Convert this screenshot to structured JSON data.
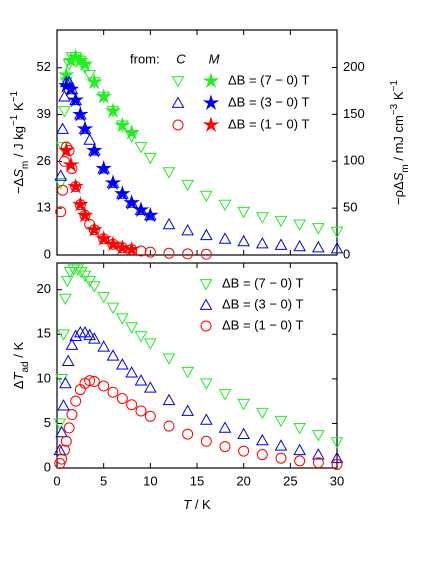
{
  "chart_data": [
    {
      "type": "scatter",
      "xlim": [
        0,
        30
      ],
      "xticks": [
        0,
        5,
        10,
        15,
        20,
        25,
        30
      ],
      "xtick_labels": false,
      "ylim": [
        0,
        62.5
      ],
      "yticks": [
        0,
        13,
        26,
        39,
        52
      ],
      "y2lim": [
        0,
        240
      ],
      "y2ticks": [
        0,
        50,
        100,
        150,
        200
      ],
      "ylabel": [
        {
          "text": "−Δ"
        },
        {
          "text": "S",
          "italic": true
        },
        {
          "text": "m",
          "sub": true
        },
        {
          "text": " / J kg"
        },
        {
          "text": "−1",
          "sup": true
        },
        {
          "text": " K"
        },
        {
          "text": "−1",
          "sup": true
        }
      ],
      "y2label": [
        {
          "text": "−ρΔ"
        },
        {
          "text": "S",
          "italic": true
        },
        {
          "text": "m",
          "sub": true
        },
        {
          "text": " / mJ cm"
        },
        {
          "text": "−3",
          "sup": true
        },
        {
          "text": " K"
        },
        {
          "text": "−1",
          "sup": true
        }
      ],
      "legend_title": "from:",
      "methods": [
        "C",
        "M"
      ],
      "series": [
        {
          "name": "ΔB = (7 − 0) T",
          "color": "#22ee22",
          "C": {
            "marker": "triangle-down",
            "x": [
              0.4,
              0.6,
              0.8,
              1,
              1.3,
              1.6,
              2,
              2.5,
              3,
              3.5,
              4,
              5,
              6,
              7,
              8,
              9,
              10,
              12,
              14,
              16,
              18,
              20,
              22,
              24,
              26,
              28,
              30
            ],
            "values": [
              20,
              30,
              40,
              48,
              53,
              55,
              55,
              54,
              52,
              50,
              48,
              44,
              40,
              36,
              33,
              30,
              27,
              23,
              19.5,
              16.5,
              14,
              12,
              10.5,
              9.5,
              8.5,
              7.5,
              6.5
            ]
          },
          "M": {
            "marker": "star",
            "x": [
              1,
              1.5,
              2,
              2.5,
              3,
              4,
              5,
              6,
              7,
              8
            ],
            "values": [
              50,
              54,
              55,
              54,
              53,
              48,
              44,
              40,
              36,
              34
            ]
          }
        },
        {
          "name": "ΔB = (3 − 0) T",
          "color": "#0000ee",
          "C": {
            "marker": "triangle-up",
            "x": [
              0.4,
              0.6,
              0.8,
              1,
              1.3,
              1.6,
              2,
              2.5,
              3,
              3.5,
              4,
              5,
              6,
              7,
              8,
              9,
              10,
              12,
              14,
              16,
              18,
              20,
              22,
              24,
              26,
              28,
              30
            ],
            "values": [
              22,
              35,
              44,
              48,
              48,
              46,
              43,
              39,
              35,
              32,
              29,
              24,
              20,
              17,
              14.5,
              12.5,
              11,
              8.5,
              6.8,
              5.5,
              4.5,
              3.8,
              3.2,
              2.8,
              2.4,
              2.1,
              1.8
            ]
          },
          "M": {
            "marker": "star",
            "x": [
              1,
              1.5,
              2,
              2.5,
              3,
              4,
              5,
              6,
              7,
              8,
              9,
              10
            ],
            "values": [
              47,
              46,
              43,
              39,
              35,
              29,
              24,
              20,
              17,
              14.5,
              12.5,
              11
            ]
          }
        },
        {
          "name": "ΔB = (1 − 0) T",
          "color": "#ff0000",
          "C": {
            "marker": "circle",
            "x": [
              0.4,
              0.6,
              0.8,
              1,
              1.3,
              1.6,
              2,
              2.5,
              3,
              3.5,
              4,
              5,
              6,
              7,
              8,
              9,
              10,
              12,
              14,
              16
            ],
            "values": [
              12,
              18,
              26,
              30,
              29,
              24,
              19,
              14,
              11,
              8.5,
              7,
              4.5,
              3,
              2,
              1.5,
              1.1,
              0.8,
              0.5,
              0.3,
              0.2
            ]
          },
          "M": {
            "marker": "star",
            "x": [
              1,
              1.5,
              2,
              2.5,
              3,
              4,
              5,
              6,
              7,
              8
            ],
            "values": [
              29,
              25,
              19,
              14,
              11,
              7,
              4.5,
              3,
              2,
              1.5
            ]
          }
        }
      ]
    },
    {
      "type": "scatter",
      "xlim": [
        0,
        30
      ],
      "xticks": [
        0,
        5,
        10,
        15,
        20,
        25,
        30
      ],
      "xtick_labels": true,
      "ylim": [
        0,
        23
      ],
      "yticks": [
        0,
        5,
        10,
        15,
        20
      ],
      "xlabel": [
        {
          "text": "T",
          "italic": true
        },
        {
          "text": " / K"
        }
      ],
      "ylabel": [
        {
          "text": "Δ"
        },
        {
          "text": "T",
          "italic": true
        },
        {
          "text": "ad",
          "sub": true
        },
        {
          "text": " / K"
        }
      ],
      "series": [
        {
          "name": "ΔB = (7 − 0) T",
          "color": "#22ee22",
          "marker": "triangle-down",
          "x": [
            0.3,
            0.5,
            0.7,
            0.9,
            1.1,
            1.4,
            1.8,
            2.2,
            2.6,
            3,
            3.5,
            4,
            5,
            6,
            7,
            8,
            9,
            10,
            12,
            14,
            16,
            18,
            20,
            22,
            24,
            26,
            28,
            30
          ],
          "values": [
            5,
            10,
            15,
            19,
            21,
            22,
            22.3,
            22.3,
            22,
            21.6,
            21,
            20.4,
            19.2,
            18,
            16.8,
            15.8,
            14.8,
            14,
            12.3,
            10.8,
            9.5,
            8.3,
            7.2,
            6.2,
            5.3,
            4.5,
            3.7,
            2.9
          ]
        },
        {
          "name": "ΔB = (3 − 0) T",
          "color": "#0000ee",
          "marker": "triangle-up",
          "x": [
            0.3,
            0.5,
            0.7,
            0.9,
            1.2,
            1.6,
            2,
            2.5,
            3,
            3.5,
            4,
            5,
            6,
            7,
            8,
            9,
            10,
            12,
            14,
            16,
            18,
            20,
            22,
            24,
            26,
            28,
            30
          ],
          "values": [
            2,
            4,
            7,
            9.5,
            12,
            13.8,
            14.8,
            15.2,
            15.2,
            14.9,
            14.5,
            13.6,
            12.6,
            11.6,
            10.7,
            9.8,
            9,
            7.6,
            6.4,
            5.4,
            4.5,
            3.8,
            3.1,
            2.5,
            2,
            1.5,
            1.1
          ]
        },
        {
          "name": "ΔB = (1 − 0) T",
          "color": "#ff0000",
          "marker": "circle",
          "x": [
            0.3,
            0.5,
            0.8,
            1,
            1.3,
            1.6,
            2,
            2.5,
            3,
            3.5,
            4,
            5,
            6,
            7,
            8,
            9,
            10,
            12,
            14,
            16,
            18,
            20,
            22,
            24,
            26,
            28,
            30
          ],
          "values": [
            0.5,
            1,
            2,
            3,
            4.5,
            6,
            7.5,
            8.8,
            9.5,
            9.8,
            9.7,
            9.2,
            8.5,
            7.8,
            7.1,
            6.4,
            5.8,
            4.7,
            3.8,
            3,
            2.4,
            1.9,
            1.5,
            1.1,
            0.8,
            0.6,
            0.4
          ]
        }
      ]
    }
  ]
}
